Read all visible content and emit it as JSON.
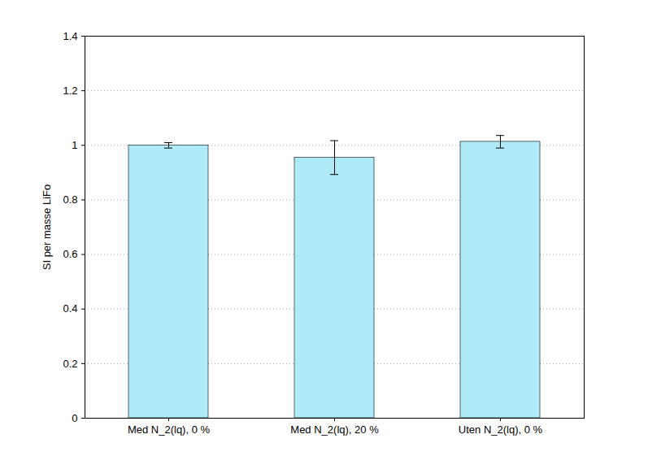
{
  "chart_data": {
    "type": "bar",
    "y_label": "SI per masse LiFo",
    "categories": [
      "Med N_2(lq), 0 %",
      "Med N_2(lq), 20 %",
      "Uten N_2(lq), 0 %"
    ],
    "values": [
      1.0,
      0.955,
      1.013
    ],
    "errors": [
      0.01,
      0.062,
      0.023
    ],
    "color": "#aeeaf8",
    "ylim": [
      0,
      1.4
    ],
    "yticks": [
      0,
      0.2,
      0.4,
      0.6,
      0.8,
      1,
      1.2,
      1.4
    ],
    "grid": true
  }
}
